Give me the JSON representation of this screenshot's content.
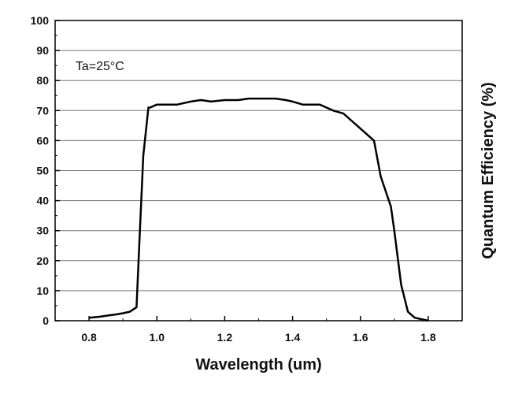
{
  "chart_data": {
    "type": "line",
    "xlabel": "Wavelength (um)",
    "ylabel": "Quantum Efficiency (%)",
    "xlim": [
      0.7,
      1.9
    ],
    "ylim": [
      0,
      100
    ],
    "x_ticks": [
      "0.8",
      "1.0",
      "1.2",
      "1.4",
      "1.6",
      "1.8"
    ],
    "y_ticks": [
      "0",
      "10",
      "20",
      "30",
      "40",
      "50",
      "60",
      "70",
      "80",
      "90",
      "100"
    ],
    "grid": "horizontal",
    "legend": "none",
    "annotation": "Ta=25°C",
    "line_color": "#000000",
    "series": [
      {
        "x": [
          0.8,
          0.83,
          0.86,
          0.88,
          0.9,
          0.92,
          0.94,
          0.95,
          0.96,
          0.975,
          0.98,
          1.0,
          1.02,
          1.04,
          1.06,
          1.08,
          1.1,
          1.13,
          1.16,
          1.2,
          1.24,
          1.27,
          1.3,
          1.33,
          1.35,
          1.38,
          1.4,
          1.43,
          1.46,
          1.48,
          1.5,
          1.52,
          1.55,
          1.58,
          1.6,
          1.62,
          1.64,
          1.66,
          1.69,
          1.7,
          1.72,
          1.74,
          1.76,
          1.78,
          1.8
        ],
        "y": [
          1,
          1.3,
          1.8,
          2.1,
          2.5,
          3,
          4.5,
          30,
          55,
          71,
          71,
          72,
          72,
          72,
          72,
          72.5,
          73,
          73.5,
          73,
          73.5,
          73.5,
          74,
          74,
          74,
          74,
          73.5,
          73,
          72,
          72,
          72,
          71,
          70,
          69,
          66,
          64,
          62,
          60,
          48,
          38,
          30,
          12,
          3,
          1,
          0.5,
          0
        ]
      }
    ]
  }
}
